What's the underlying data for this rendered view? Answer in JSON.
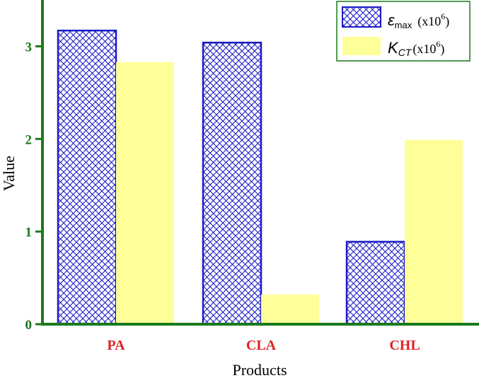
{
  "colors": {
    "axis": "#1a7a1a",
    "tick_label": "#1a7a1a",
    "category_label": "#e02020",
    "series1_stroke": "#1a1ac8",
    "series2_fill": "#ffff99"
  },
  "legend": {
    "series1": {
      "symbol": "ε",
      "subscript": "max",
      "unit_prefix": "(x10",
      "unit_exp": "6",
      "unit_suffix": ")"
    },
    "series2": {
      "symbol": "K",
      "subscript": "CT",
      "unit_prefix": "(x10",
      "unit_exp": "6",
      "unit_suffix": ")"
    }
  },
  "chart_data": {
    "type": "bar",
    "title": "",
    "xlabel": "Products",
    "ylabel": "Value",
    "categories": [
      "PA",
      "CLA",
      "CHL"
    ],
    "series": [
      {
        "name": "εmax (x10^6)",
        "values": [
          3.17,
          3.04,
          0.89
        ]
      },
      {
        "name": "KCT (x10^6)",
        "values": [
          2.83,
          0.32,
          1.99
        ]
      }
    ],
    "ylim": [
      0,
      3.5
    ],
    "yticks": [
      "0",
      "1",
      "2",
      "3"
    ],
    "grid": false,
    "legend_position": "top-right"
  }
}
